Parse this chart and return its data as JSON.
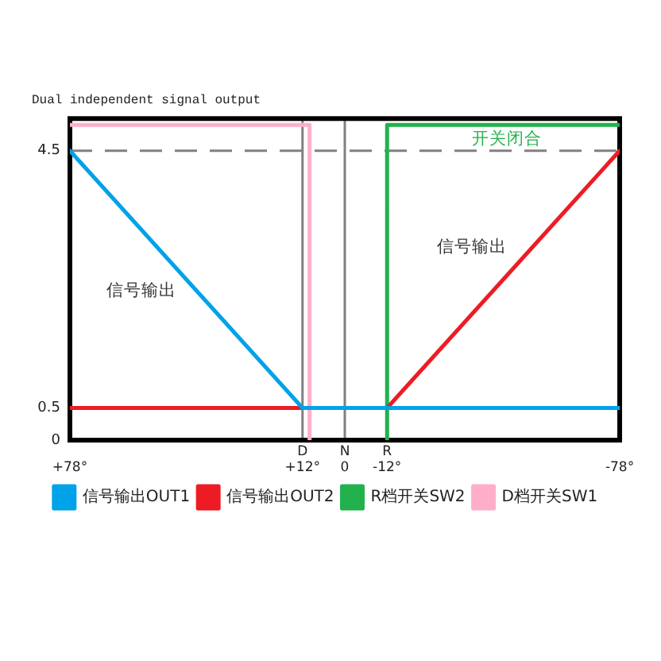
{
  "chart_data": {
    "type": "line",
    "title": "Dual independent signal output",
    "series": [
      {
        "name": "信号输出OUT1",
        "color": "#00a2e8",
        "x": [
          78,
          12,
          -78
        ],
        "values": [
          4.5,
          0.5,
          0.5
        ]
      },
      {
        "name": "信号输出OUT2",
        "color": "#ed1c24",
        "x": [
          78,
          -12,
          -78
        ],
        "values": [
          0.5,
          0.5,
          4.5
        ]
      },
      {
        "name": "R档开关SW2",
        "color": "#22b14c",
        "x": [
          -12,
          -12,
          -78
        ],
        "values": [
          0,
          4.9,
          4.9
        ]
      },
      {
        "name": "D档开关SW1",
        "color": "#ffaec9",
        "x": [
          78,
          10,
          10
        ],
        "values": [
          4.9,
          4.9,
          0
        ]
      }
    ],
    "xlim": [
      78,
      -78
    ],
    "xticks": [
      {
        "value": 78,
        "label": "+78°"
      },
      {
        "value": 12,
        "label": "D\n+12°"
      },
      {
        "value": 0,
        "label": "N\n0"
      },
      {
        "value": -12,
        "label": "R\n-12°"
      },
      {
        "value": -78,
        "label": "-78°"
      }
    ],
    "ylim": [
      0,
      5
    ],
    "yticks": [
      0,
      0.5,
      4.5
    ],
    "ref_lines": [
      {
        "axis": "y",
        "value": 4.5,
        "color": "#808080",
        "line_style": "dashed"
      },
      {
        "axis": "x",
        "value": 12,
        "color": "#808080"
      },
      {
        "axis": "x",
        "value": 0,
        "color": "#808080"
      }
    ],
    "annotations": [
      "信号输出",
      "信号输出",
      "开关闭合"
    ],
    "legend": "bottom",
    "grid": false,
    "marker": "none"
  }
}
